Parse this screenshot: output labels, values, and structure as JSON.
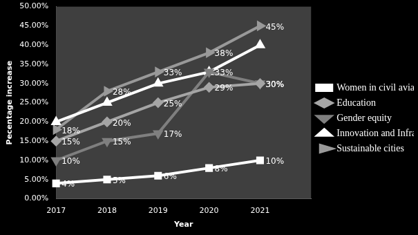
{
  "chart_data": {
    "type": "line",
    "x_label": "Year",
    "y_label": "Pecentage increase",
    "categories": [
      "2017",
      "2018",
      "2019",
      "2020",
      "2021",
      null
    ],
    "ylim": [
      0,
      50
    ],
    "yticks": [
      {
        "value": 0,
        "label": "0.00%"
      },
      {
        "value": 5,
        "label": "5.00%"
      },
      {
        "value": 10,
        "label": "10.00%"
      },
      {
        "value": 15,
        "label": "15.00%"
      },
      {
        "value": 20,
        "label": "20.00%"
      },
      {
        "value": 25,
        "label": "25.00%"
      },
      {
        "value": 30,
        "label": "30.00%"
      },
      {
        "value": 35,
        "label": "35.00%"
      },
      {
        "value": 40,
        "label": "40.00%"
      },
      {
        "value": 45,
        "label": "45.00%"
      },
      {
        "value": 50,
        "label": "50.00%"
      }
    ],
    "grid": false,
    "legend": "right",
    "data_labels": true,
    "series": [
      {
        "name": "Women in civil aviation",
        "color": "#ffffff",
        "marker": "square",
        "values": [
          4,
          5,
          6,
          8,
          10,
          null
        ],
        "value_labels": [
          "4%",
          "5%",
          "6%",
          "8%",
          "10%",
          null
        ]
      },
      {
        "name": "Education",
        "color": "#a5a5a5",
        "marker": "diamond",
        "values": [
          15,
          20,
          25,
          29,
          30,
          null
        ],
        "value_labels": [
          "15%",
          "20%",
          "25%",
          "29%",
          "30%",
          null
        ]
      },
      {
        "name": "Gender equity",
        "color": "#7f7f7f",
        "marker": "triangle_down",
        "values": [
          10,
          15,
          17,
          33,
          30,
          null
        ],
        "value_labels": [
          "10%",
          "15%",
          "17%",
          "33%",
          "30%",
          null
        ]
      },
      {
        "name": "Innovation and Infrastructure",
        "color": "#ffffff",
        "marker": "triangle",
        "data_labels": false,
        "values": [
          20,
          25,
          30,
          33,
          40,
          null
        ]
      },
      {
        "name": "Sustainable cities",
        "color": "#999999",
        "marker": "arrow",
        "values": [
          18,
          28,
          33,
          38,
          45,
          null
        ],
        "value_labels": [
          "18%",
          "28%",
          "33%",
          "38%",
          "45%",
          null
        ]
      }
    ]
  }
}
